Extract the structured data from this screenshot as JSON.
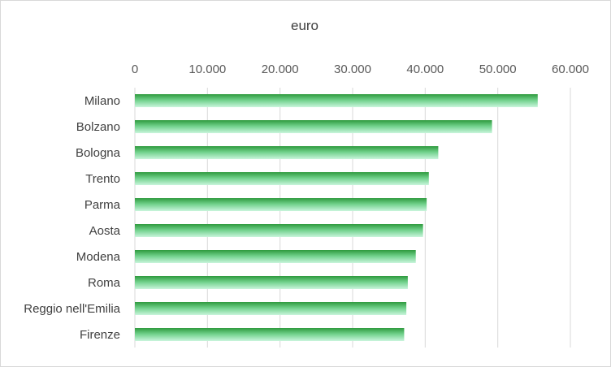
{
  "chart_data": {
    "type": "bar",
    "orientation": "horizontal",
    "title": "euro",
    "xlabel": "",
    "ylabel": "",
    "categories": [
      "Milano",
      "Bolzano",
      "Bologna",
      "Trento",
      "Parma",
      "Aosta",
      "Modena",
      "Roma",
      "Reggio nell'Emilia",
      "Firenze"
    ],
    "values": [
      55500,
      49200,
      41800,
      40500,
      40200,
      39700,
      38700,
      37600,
      37400,
      37100
    ],
    "xlim": [
      0,
      60000
    ],
    "ticks": [
      0,
      10000,
      20000,
      30000,
      40000,
      50000,
      60000
    ],
    "tick_labels": [
      "0",
      "10.000",
      "20.000",
      "30.000",
      "40.000",
      "50.000",
      "60.000"
    ],
    "axis_position": "top",
    "grid": true,
    "legend": "none",
    "colors": {
      "bar_dark": "#2e9a3e",
      "bar_light": "#c9f5dc",
      "grid": "#d9d9d9"
    }
  }
}
